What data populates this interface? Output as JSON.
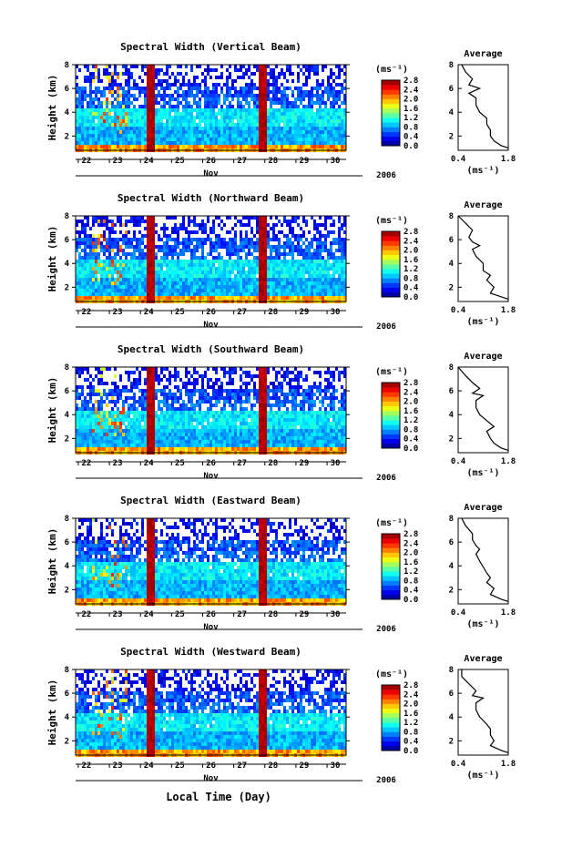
{
  "figure": {
    "x_axis_title": "Local Time (Day)",
    "month_label": "Nov",
    "year_label": "2006"
  },
  "chart_data": [
    {
      "type": "heatmap",
      "title": "Spectral Width (Vertical Beam)",
      "ylabel": "Height (km)",
      "y_ticks": [
        "2",
        "4",
        "6",
        "8"
      ],
      "ylim": [
        0.8,
        8
      ],
      "x_ticks": [
        "22",
        "23",
        "24",
        "25",
        "26",
        "27",
        "28",
        "29",
        "30"
      ],
      "colorbar": {
        "unit": "(ms⁻¹)",
        "ticks": [
          "0.0",
          "0.4",
          "0.8",
          "1.2",
          "1.6",
          "2.0",
          "2.4",
          "2.8"
        ]
      },
      "profile": {
        "title": "Average",
        "xlabel": "(ms⁻¹)",
        "x_ticks": [
          "0.4",
          "1.8"
        ],
        "y_ticks": [
          "2",
          "4",
          "6",
          "8"
        ],
        "points": [
          [
            0.5,
            8.0
          ],
          [
            0.6,
            7.4
          ],
          [
            0.8,
            6.8
          ],
          [
            0.7,
            6.3
          ],
          [
            1.0,
            6.0
          ],
          [
            0.7,
            5.6
          ],
          [
            0.9,
            5.2
          ],
          [
            0.9,
            4.6
          ],
          [
            1.0,
            4.0
          ],
          [
            1.2,
            3.5
          ],
          [
            1.2,
            3.0
          ],
          [
            1.3,
            2.5
          ],
          [
            1.3,
            2.0
          ],
          [
            1.4,
            1.6
          ],
          [
            1.6,
            1.2
          ],
          [
            1.8,
            1.0
          ]
        ]
      }
    },
    {
      "type": "heatmap",
      "title": "Spectral Width (Northward Beam)",
      "ylabel": "Height (km)",
      "y_ticks": [
        "2",
        "4",
        "6",
        "8"
      ],
      "ylim": [
        0.8,
        8
      ],
      "x_ticks": [
        "22",
        "23",
        "24",
        "25",
        "26",
        "27",
        "28",
        "29",
        "30"
      ],
      "colorbar": {
        "unit": "(ms⁻¹)",
        "ticks": [
          "0.0",
          "0.4",
          "0.8",
          "1.2",
          "1.6",
          "2.0",
          "2.4",
          "2.8"
        ]
      },
      "profile": {
        "title": "Average",
        "xlabel": "(ms⁻¹)",
        "x_ticks": [
          "0.4",
          "1.8"
        ],
        "y_ticks": [
          "2",
          "4",
          "6",
          "8"
        ],
        "points": [
          [
            0.4,
            8.0
          ],
          [
            0.6,
            7.4
          ],
          [
            0.8,
            6.8
          ],
          [
            0.7,
            6.2
          ],
          [
            0.8,
            5.8
          ],
          [
            1.0,
            5.5
          ],
          [
            0.8,
            5.2
          ],
          [
            0.9,
            4.6
          ],
          [
            1.1,
            4.0
          ],
          [
            1.1,
            3.4
          ],
          [
            1.3,
            3.0
          ],
          [
            1.2,
            2.6
          ],
          [
            1.4,
            2.0
          ],
          [
            1.3,
            1.5
          ],
          [
            1.6,
            1.2
          ],
          [
            1.8,
            1.0
          ]
        ]
      }
    },
    {
      "type": "heatmap",
      "title": "Spectral Width (Southward Beam)",
      "ylabel": "Height (km)",
      "y_ticks": [
        "2",
        "4",
        "6",
        "8"
      ],
      "ylim": [
        0.8,
        8
      ],
      "x_ticks": [
        "22",
        "23",
        "24",
        "25",
        "26",
        "27",
        "28",
        "29",
        "30"
      ],
      "colorbar": {
        "unit": "(ms⁻¹)",
        "ticks": [
          "0.0",
          "0.4",
          "0.8",
          "1.2",
          "1.6",
          "2.0",
          "2.4",
          "2.8"
        ]
      },
      "profile": {
        "title": "Average",
        "xlabel": "(ms⁻¹)",
        "x_ticks": [
          "0.4",
          "1.8"
        ],
        "y_ticks": [
          "2",
          "4",
          "6",
          "8"
        ],
        "points": [
          [
            0.4,
            8.0
          ],
          [
            0.6,
            7.3
          ],
          [
            0.8,
            6.7
          ],
          [
            1.0,
            6.2
          ],
          [
            0.8,
            5.8
          ],
          [
            1.1,
            5.6
          ],
          [
            0.9,
            5.2
          ],
          [
            0.9,
            4.6
          ],
          [
            1.0,
            4.0
          ],
          [
            1.2,
            3.5
          ],
          [
            1.4,
            3.0
          ],
          [
            1.2,
            2.6
          ],
          [
            1.3,
            2.0
          ],
          [
            1.4,
            1.6
          ],
          [
            1.6,
            1.2
          ],
          [
            1.8,
            1.0
          ]
        ]
      }
    },
    {
      "type": "heatmap",
      "title": "Spectral Width (Eastward Beam)",
      "ylabel": "Height (km)",
      "y_ticks": [
        "2",
        "4",
        "6",
        "8"
      ],
      "ylim": [
        0.8,
        8
      ],
      "x_ticks": [
        "22",
        "23",
        "24",
        "25",
        "26",
        "27",
        "28",
        "29",
        "30"
      ],
      "colorbar": {
        "unit": "(ms⁻¹)",
        "ticks": [
          "0.0",
          "0.4",
          "0.8",
          "1.2",
          "1.6",
          "2.0",
          "2.4",
          "2.8"
        ]
      },
      "profile": {
        "title": "Average",
        "xlabel": "(ms⁻¹)",
        "x_ticks": [
          "0.4",
          "1.8"
        ],
        "y_ticks": [
          "2",
          "4",
          "6",
          "8"
        ],
        "points": [
          [
            0.5,
            8.0
          ],
          [
            0.6,
            7.4
          ],
          [
            0.8,
            6.7
          ],
          [
            0.8,
            6.2
          ],
          [
            0.9,
            5.7
          ],
          [
            1.0,
            5.4
          ],
          [
            0.9,
            5.0
          ],
          [
            1.0,
            4.4
          ],
          [
            1.1,
            3.9
          ],
          [
            1.2,
            3.4
          ],
          [
            1.3,
            3.0
          ],
          [
            1.2,
            2.6
          ],
          [
            1.4,
            2.1
          ],
          [
            1.3,
            1.6
          ],
          [
            1.6,
            1.2
          ],
          [
            1.8,
            1.0
          ]
        ]
      }
    },
    {
      "type": "heatmap",
      "title": "Spectral Width (Westward Beam)",
      "ylabel": "Height (km)",
      "y_ticks": [
        "2",
        "4",
        "6",
        "8"
      ],
      "ylim": [
        0.8,
        8
      ],
      "x_ticks": [
        "22",
        "23",
        "24",
        "25",
        "26",
        "27",
        "28",
        "29",
        "30"
      ],
      "colorbar": {
        "unit": "(ms⁻¹)",
        "ticks": [
          "0.0",
          "0.4",
          "0.8",
          "1.2",
          "1.6",
          "2.0",
          "2.4",
          "2.8"
        ]
      },
      "profile": {
        "title": "Average",
        "xlabel": "(ms⁻¹)",
        "x_ticks": [
          "0.4",
          "1.8"
        ],
        "y_ticks": [
          "2",
          "4",
          "6",
          "8"
        ],
        "points": [
          [
            0.5,
            8.0
          ],
          [
            0.5,
            7.4
          ],
          [
            0.7,
            6.8
          ],
          [
            0.9,
            6.2
          ],
          [
            0.8,
            5.8
          ],
          [
            1.1,
            5.6
          ],
          [
            0.9,
            5.2
          ],
          [
            0.9,
            4.6
          ],
          [
            1.0,
            4.0
          ],
          [
            1.2,
            3.4
          ],
          [
            1.3,
            3.0
          ],
          [
            1.3,
            2.5
          ],
          [
            1.4,
            2.0
          ],
          [
            1.3,
            1.6
          ],
          [
            1.6,
            1.2
          ],
          [
            1.8,
            1.0
          ]
        ]
      }
    }
  ]
}
